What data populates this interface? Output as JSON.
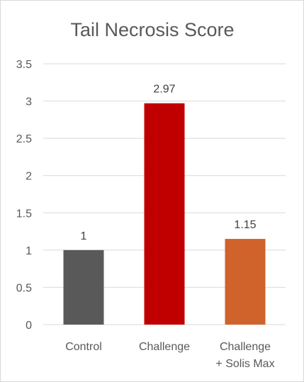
{
  "chart_data": {
    "type": "bar",
    "title": "Tail Necrosis Score",
    "xlabel": "",
    "ylabel": "",
    "ylim": [
      0,
      3.5
    ],
    "yticks": [
      "0",
      "0.5",
      "1",
      "1.5",
      "2",
      "2.5",
      "3",
      "3.5"
    ],
    "categories": [
      [
        "Control"
      ],
      [
        "Challenge"
      ],
      [
        "Challenge",
        "+ Solis Max"
      ]
    ],
    "values": [
      1,
      2.97,
      1.15
    ],
    "data_labels": [
      "1",
      "2.97",
      "1.15"
    ],
    "colors": [
      "#595959",
      "#c00000",
      "#d0622b"
    ],
    "grid": true,
    "legend": "none"
  }
}
